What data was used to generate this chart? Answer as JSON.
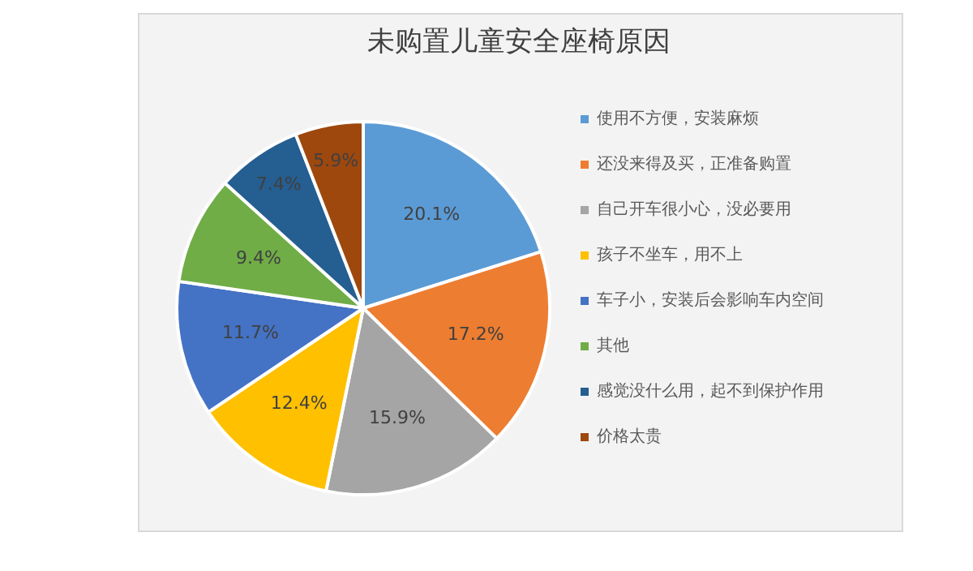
{
  "chart_data": {
    "type": "pie",
    "title": "未购置儿童安全座椅原因",
    "categories": [
      "使用不方便，安装麻烦",
      "还没来得及买，正准备购置",
      "自己开车很小心，没必要用",
      "孩子不坐车，用不上",
      "车子小，安装后会影响车内空间",
      "其他",
      "感觉没什么用，起不到保护作用",
      "价格太贵"
    ],
    "values": [
      20.1,
      17.2,
      15.9,
      12.4,
      11.7,
      9.4,
      7.4,
      5.9
    ],
    "colors": [
      "#5b9bd5",
      "#ed7d31",
      "#a5a5a5",
      "#ffc000",
      "#4472c4",
      "#70ad47",
      "#255e91",
      "#9e480e"
    ],
    "value_labels": [
      "20.1%",
      "17.2%",
      "15.9%",
      "12.4%",
      "11.7%",
      "9.4%",
      "7.4%",
      "5.9%"
    ],
    "legend": "right"
  }
}
